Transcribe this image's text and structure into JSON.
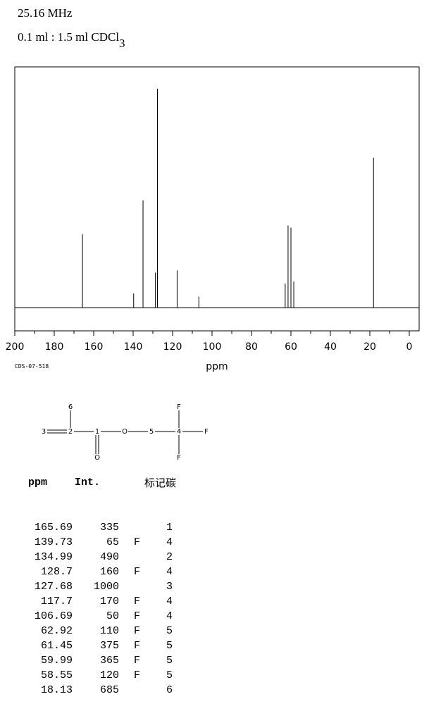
{
  "header": {
    "frequency": "25.16 MHz",
    "solvent": {
      "text": "0.1 ml : 1.5 ml CDCl",
      "sub": "3"
    },
    "code": "CDS-07-518"
  },
  "chart_data": {
    "type": "stick",
    "xlabel": "ppm",
    "x": [
      165.69,
      139.73,
      134.99,
      128.7,
      127.68,
      117.7,
      106.69,
      62.92,
      61.45,
      59.99,
      58.55,
      18.13
    ],
    "values": [
      335,
      65,
      490,
      160,
      1000,
      170,
      50,
      110,
      375,
      365,
      120,
      685
    ],
    "xlim": [
      200,
      0
    ],
    "xticks": [
      200,
      180,
      160,
      140,
      120,
      100,
      80,
      60,
      40,
      20,
      0
    ],
    "xminorticks": [
      190,
      170,
      150,
      130,
      110,
      90,
      70,
      50,
      30,
      10
    ],
    "color": "#000000"
  },
  "structure": {
    "nodes": [
      {
        "label": "3"
      },
      {
        "label": "2"
      },
      {
        "label": "1"
      },
      {
        "label": "O"
      },
      {
        "label": "5"
      },
      {
        "label": "4"
      },
      {
        "label": "F"
      },
      {
        "label": "6"
      },
      {
        "label": "O"
      },
      {
        "label": "F"
      },
      {
        "label": "F"
      }
    ]
  },
  "table": {
    "headers": [
      "ppm",
      "Int.",
      "标记碳"
    ],
    "flags": [
      "",
      "F",
      "",
      "F",
      "",
      "F",
      "F",
      "F",
      "F",
      "F",
      "F",
      ""
    ],
    "assign": [
      "1",
      "4",
      "2",
      "4",
      "3",
      "4",
      "4",
      "5",
      "5",
      "5",
      "5",
      "6"
    ]
  }
}
